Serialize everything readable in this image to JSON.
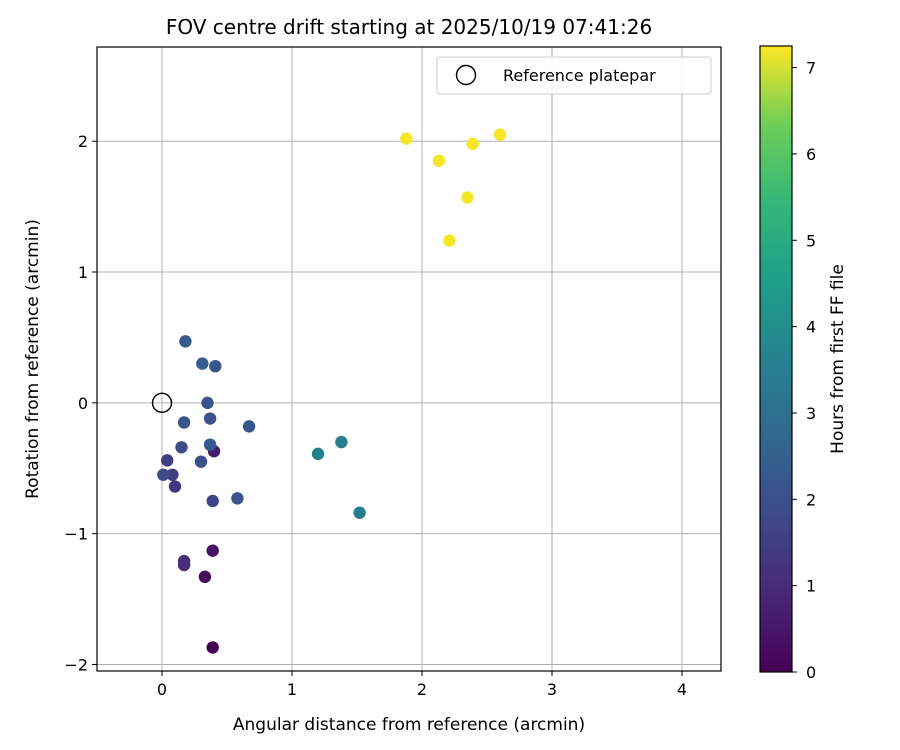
{
  "chart_data": {
    "type": "scatter",
    "title": "FOV centre drift starting at 2025/10/19 07:41:26",
    "xlabel": "Angular distance from reference (arcmin)",
    "ylabel": "Rotation from reference (arcmin)",
    "xlim": [
      -0.5,
      4.3
    ],
    "ylim": [
      -2.05,
      2.72
    ],
    "xticks": [
      0,
      1,
      2,
      3,
      4
    ],
    "xtick_labels": [
      "0",
      "1",
      "2",
      "3",
      "4"
    ],
    "yticks": [
      -2,
      -1,
      0,
      1,
      2
    ],
    "ytick_labels": [
      "−2",
      "−1",
      "0",
      "1",
      "2"
    ],
    "grid": true,
    "legend": {
      "position": "top-right",
      "label": "Reference platepar"
    },
    "reference": {
      "x": 0,
      "y": 0
    },
    "colorbar": {
      "label": "Hours from first FF file",
      "colormap": "viridis",
      "range": [
        0,
        7.25
      ],
      "ticks": [
        0,
        1,
        2,
        3,
        4,
        5,
        6,
        7
      ],
      "tick_labels": [
        "0",
        "1",
        "2",
        "3",
        "4",
        "5",
        "6",
        "7"
      ]
    },
    "points": [
      {
        "x": 0.39,
        "y": -1.87,
        "hours": 0.0
      },
      {
        "x": 0.33,
        "y": -1.33,
        "hours": 0.3
      },
      {
        "x": 0.39,
        "y": -1.13,
        "hours": 0.4
      },
      {
        "x": 0.17,
        "y": -1.24,
        "hours": 1.0
      },
      {
        "x": 0.17,
        "y": -1.21,
        "hours": 1.1
      },
      {
        "x": 0.4,
        "y": -0.37,
        "hours": 0.6
      },
      {
        "x": 0.1,
        "y": -0.64,
        "hours": 1.3
      },
      {
        "x": 0.08,
        "y": -0.55,
        "hours": 1.5
      },
      {
        "x": 0.04,
        "y": -0.44,
        "hours": 1.5
      },
      {
        "x": 0.01,
        "y": -0.55,
        "hours": 1.9
      },
      {
        "x": 0.39,
        "y": -0.75,
        "hours": 1.7
      },
      {
        "x": 0.58,
        "y": -0.73,
        "hours": 2.1
      },
      {
        "x": 0.3,
        "y": -0.45,
        "hours": 2.0
      },
      {
        "x": 0.15,
        "y": -0.34,
        "hours": 1.9
      },
      {
        "x": 0.37,
        "y": -0.32,
        "hours": 2.3
      },
      {
        "x": 0.17,
        "y": -0.15,
        "hours": 2.2
      },
      {
        "x": 0.37,
        "y": -0.12,
        "hours": 2.1
      },
      {
        "x": 0.35,
        "y": 0.0,
        "hours": 2.2
      },
      {
        "x": 0.67,
        "y": -0.18,
        "hours": 2.2
      },
      {
        "x": 0.31,
        "y": 0.3,
        "hours": 2.4
      },
      {
        "x": 0.41,
        "y": 0.28,
        "hours": 2.2
      },
      {
        "x": 0.18,
        "y": 0.47,
        "hours": 2.3
      },
      {
        "x": 1.2,
        "y": -0.39,
        "hours": 3.6
      },
      {
        "x": 1.38,
        "y": -0.3,
        "hours": 3.5
      },
      {
        "x": 1.52,
        "y": -0.84,
        "hours": 3.5
      },
      {
        "x": 1.88,
        "y": 2.02,
        "hours": 7.2
      },
      {
        "x": 2.13,
        "y": 1.85,
        "hours": 7.2
      },
      {
        "x": 2.39,
        "y": 1.98,
        "hours": 7.2
      },
      {
        "x": 2.6,
        "y": 2.05,
        "hours": 7.2
      },
      {
        "x": 2.35,
        "y": 1.57,
        "hours": 7.2
      },
      {
        "x": 2.21,
        "y": 1.24,
        "hours": 7.2
      }
    ]
  }
}
